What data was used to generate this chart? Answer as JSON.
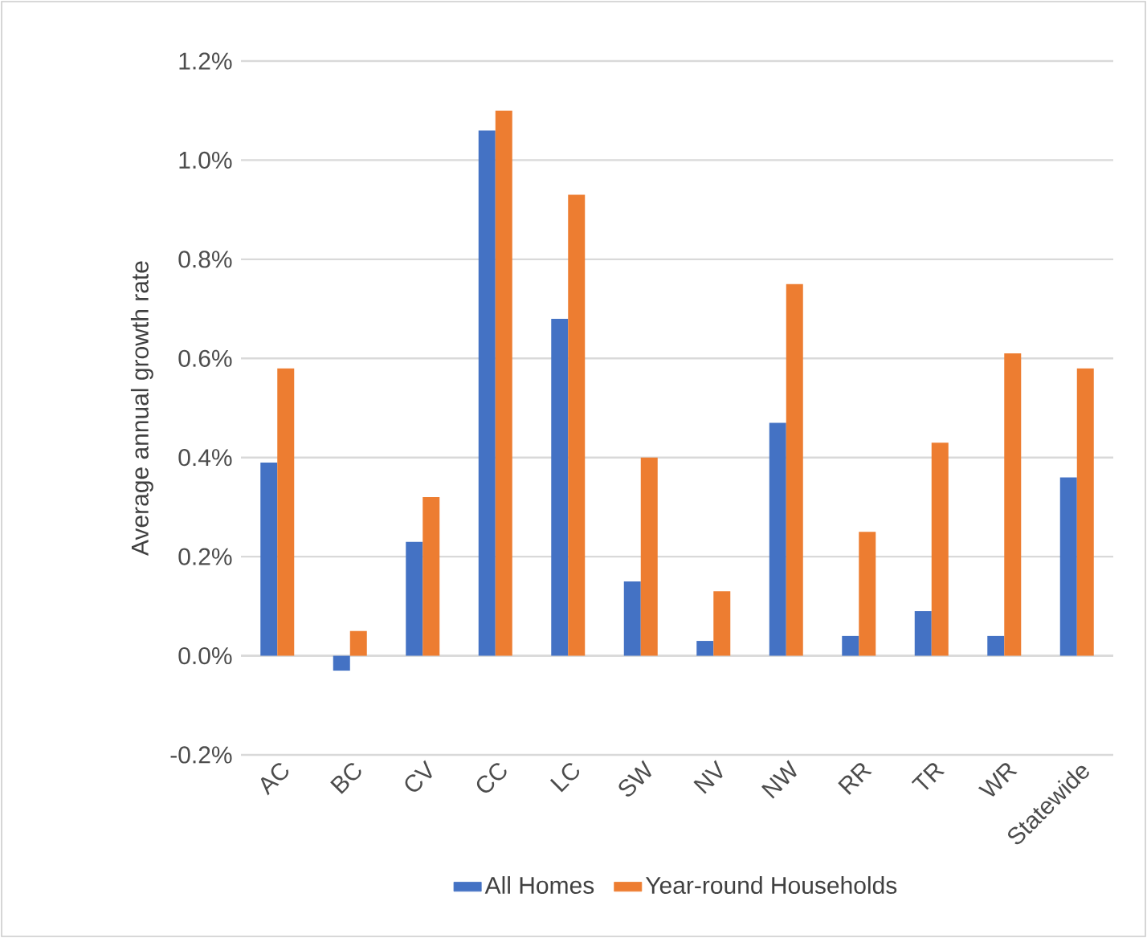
{
  "chart_data": {
    "type": "bar",
    "ylabel": "Average annual growth rate",
    "categories": [
      "AC",
      "BC",
      "CV",
      "CC",
      "LC",
      "SW",
      "NV",
      "NW",
      "RR",
      "TR",
      "WR",
      "Statewide"
    ],
    "series": [
      {
        "name": "All Homes",
        "color": "#4472c4",
        "values": [
          0.39,
          -0.03,
          0.23,
          1.06,
          0.68,
          0.15,
          0.03,
          0.47,
          0.04,
          0.09,
          0.04,
          0.36
        ]
      },
      {
        "name": "Year-round Households",
        "color": "#ed7d31",
        "values": [
          0.58,
          0.05,
          0.32,
          1.1,
          0.93,
          0.4,
          0.13,
          0.75,
          0.25,
          0.43,
          0.61,
          0.58
        ]
      }
    ],
    "ylim": [
      -0.2,
      1.2
    ],
    "yticks": [
      {
        "value": -0.2,
        "label": "-0.2%"
      },
      {
        "value": 0,
        "label": "0.0%"
      },
      {
        "value": 0.2,
        "label": "0.2%"
      },
      {
        "value": 0.4,
        "label": "0.4%"
      },
      {
        "value": 0.6,
        "label": "0.6%"
      },
      {
        "value": 0.8,
        "label": "0.8%"
      },
      {
        "value": 1.0,
        "label": "1.0%"
      },
      {
        "value": 1.2,
        "label": "1.2%"
      }
    ],
    "grid": "y",
    "legend": "bottom"
  }
}
